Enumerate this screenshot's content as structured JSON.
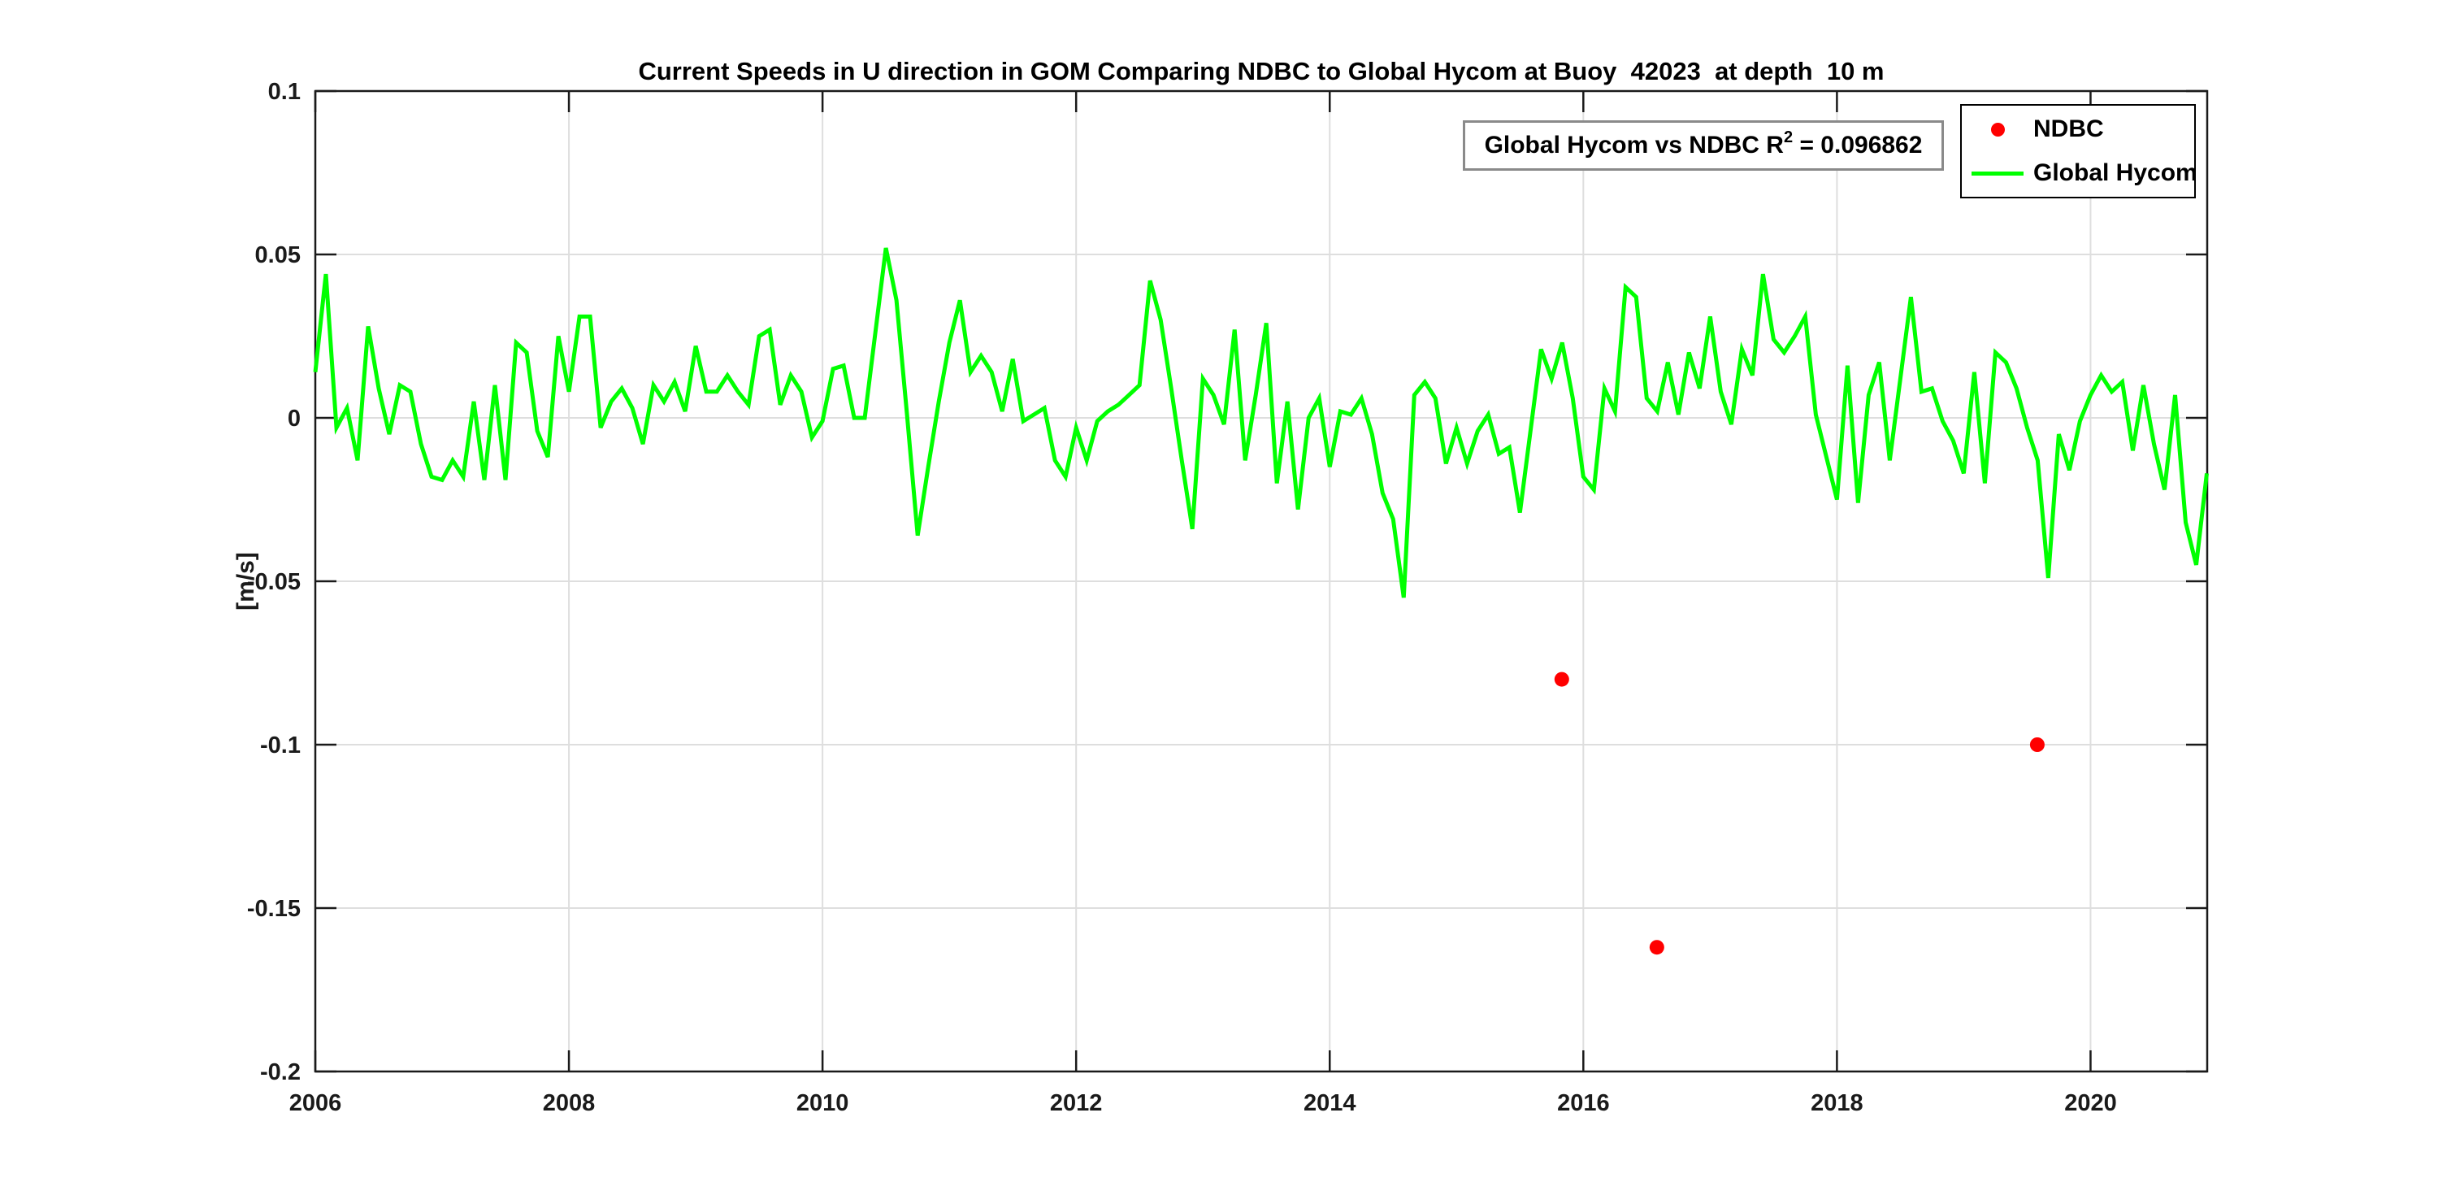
{
  "title": "Current Speeds in U direction in GOM Comparing NDBC to Global Hycom at Buoy  42023  at depth  10 m",
  "annotation": {
    "text_before_sup": "Global Hycom vs NDBC R",
    "superscript": "2",
    "text_after_sup": " = 0.096862"
  },
  "legend": {
    "items": [
      {
        "label": "NDBC",
        "marker": "red-dot",
        "color": "#ff0000"
      },
      {
        "label": "Global Hycom",
        "marker": "green-line",
        "color": "#00ff00"
      }
    ]
  },
  "colors": {
    "ndbc": "#ff0000",
    "global_hycom": "#00ff00",
    "axis": "#1a1a1a",
    "grid": "#dedede",
    "background": "#ffffff"
  },
  "chart_data": {
    "type": "line+scatter",
    "title": "Current Speeds in U direction in GOM Comparing NDBC to Global Hycom at Buoy  42023  at depth  10 m",
    "xlabel": "",
    "ylabel": "[m/s]",
    "xlim": [
      2006,
      2020.92
    ],
    "ylim": [
      -0.2,
      0.1
    ],
    "grid": true,
    "legend_position": "top-right",
    "xticks": [
      2006,
      2008,
      2010,
      2012,
      2014,
      2016,
      2018,
      2020
    ],
    "ytick_values": [
      0.1,
      0.05,
      0,
      -0.05,
      -0.1,
      -0.15,
      -0.2
    ],
    "ytick_labels": [
      "0.1",
      "0.05",
      "0",
      "-0.05",
      "-0.1",
      "-0.15",
      "-0.2"
    ],
    "series": [
      {
        "name": "Global Hycom",
        "type": "line",
        "color": "#00ff00",
        "x_start_year": 2006.0,
        "x_step_years": 0.0833333,
        "x_description": "monthly values, Jan 2006 through Dec 2020",
        "values": [
          0.014,
          0.044,
          -0.003,
          0.003,
          -0.013,
          0.028,
          0.009,
          -0.005,
          0.01,
          0.008,
          -0.008,
          -0.018,
          -0.019,
          -0.013,
          -0.018,
          0.005,
          -0.019,
          0.01,
          -0.019,
          0.023,
          0.02,
          -0.004,
          -0.012,
          0.025,
          0.008,
          0.031,
          0.031,
          -0.003,
          0.005,
          0.009,
          0.003,
          -0.008,
          0.01,
          0.005,
          0.011,
          0.002,
          0.022,
          0.008,
          0.008,
          0.013,
          0.008,
          0.004,
          0.025,
          0.027,
          0.004,
          0.013,
          0.008,
          -0.006,
          -0.001,
          0.015,
          0.016,
          0.0,
          0.0,
          0.026,
          0.052,
          0.036,
          0.001,
          -0.036,
          -0.015,
          0.005,
          0.023,
          0.036,
          0.014,
          0.019,
          0.014,
          0.002,
          0.018,
          -0.001,
          0.001,
          0.003,
          -0.013,
          -0.018,
          -0.003,
          -0.013,
          -0.001,
          0.002,
          0.004,
          0.007,
          0.01,
          0.042,
          0.03,
          0.009,
          -0.013,
          -0.034,
          0.012,
          0.007,
          -0.002,
          0.027,
          -0.013,
          0.007,
          0.029,
          -0.02,
          0.005,
          -0.028,
          0.0,
          0.006,
          -0.015,
          0.002,
          0.001,
          0.006,
          -0.005,
          -0.023,
          -0.031,
          -0.055,
          0.007,
          0.011,
          0.006,
          -0.014,
          -0.003,
          -0.014,
          -0.004,
          0.001,
          -0.011,
          -0.009,
          -0.029,
          -0.004,
          0.021,
          0.012,
          0.023,
          0.006,
          -0.018,
          -0.022,
          0.009,
          0.002,
          0.04,
          0.037,
          0.006,
          0.002,
          0.017,
          0.001,
          0.02,
          0.009,
          0.031,
          0.008,
          -0.002,
          0.021,
          0.013,
          0.044,
          0.024,
          0.02,
          0.025,
          0.031,
          0.001,
          -0.012,
          -0.025,
          0.016,
          -0.026,
          0.007,
          0.017,
          -0.013,
          0.012,
          0.037,
          0.008,
          0.009,
          -0.001,
          -0.007,
          -0.017,
          0.014,
          -0.02,
          0.02,
          0.017,
          0.009,
          -0.003,
          -0.013,
          -0.049,
          -0.005,
          -0.016,
          -0.001,
          0.007,
          0.013,
          0.008,
          0.011,
          -0.01,
          0.01,
          -0.008,
          -0.022,
          0.007,
          -0.032,
          -0.045,
          -0.017
        ]
      },
      {
        "name": "NDBC",
        "type": "scatter",
        "color": "#ff0000",
        "points": [
          {
            "x": 2015.83,
            "y": -0.08
          },
          {
            "x": 2016.58,
            "y": -0.162
          },
          {
            "x": 2019.58,
            "y": -0.1
          }
        ]
      }
    ]
  }
}
